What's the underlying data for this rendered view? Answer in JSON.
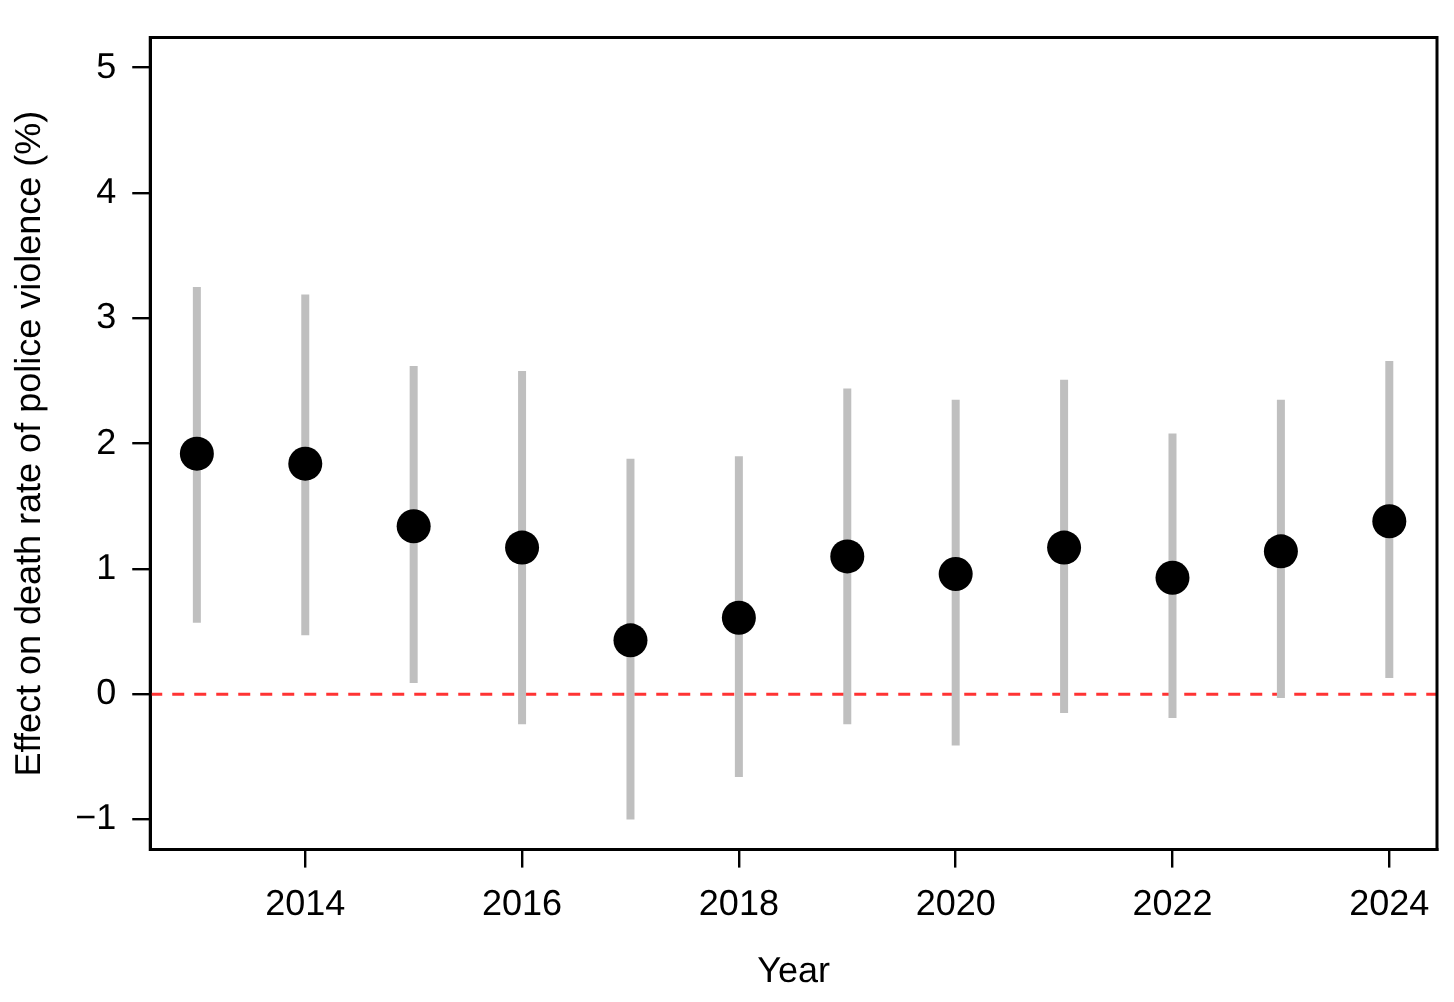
{
  "chart_data": {
    "type": "scatter",
    "xlabel": "Year",
    "ylabel": "Effect on death rate of police violence (%)",
    "x": [
      2013,
      2014,
      2015,
      2016,
      2017,
      2018,
      2019,
      2020,
      2021,
      2022,
      2023,
      2024
    ],
    "series": [
      {
        "color": "#000000",
        "values": [
          1.92,
          1.84,
          1.34,
          1.17,
          0.43,
          0.61,
          1.1,
          0.96,
          1.17,
          0.93,
          1.14,
          1.38
        ],
        "errors": [
          [
            0.57,
            3.25
          ],
          [
            0.47,
            3.19
          ],
          [
            0.09,
            2.62
          ],
          [
            -0.24,
            2.58
          ],
          [
            -1.0,
            1.88
          ],
          [
            -0.66,
            1.9
          ],
          [
            -0.24,
            2.44
          ],
          [
            -0.41,
            2.35
          ],
          [
            -0.15,
            2.51
          ],
          [
            -0.19,
            2.08
          ],
          [
            -0.03,
            2.35
          ],
          [
            0.13,
            2.66
          ]
        ]
      }
    ],
    "xlim": [
      2012.57,
      2024.44
    ],
    "xticks": [
      2014,
      2016,
      2018,
      2020,
      2022,
      2024
    ],
    "ylim": [
      -1.24,
      5.24
    ],
    "yticks": [
      -1,
      0,
      1,
      2,
      3,
      4,
      5
    ],
    "ref_lines": [
      {
        "axis": "y",
        "value": 0,
        "color": "#ff3333",
        "line_style": "dashed"
      }
    ],
    "grid": false,
    "legend": false,
    "marker": "circle"
  }
}
